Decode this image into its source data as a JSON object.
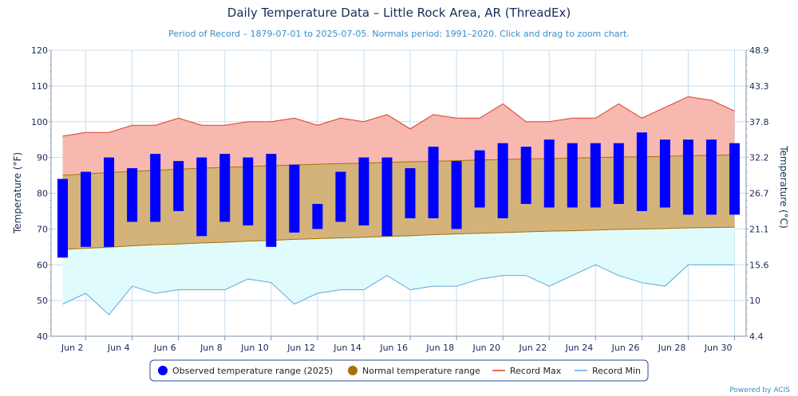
{
  "title": "Daily Temperature Data – Little Rock Area, AR (ThreadEx)",
  "subtitle": "Period of Record – 1879-07-01 to 2025-07-05. Normals period: 1991–2020. Click and drag to zoom chart.",
  "credits": "Powered by ACIS",
  "colors": {
    "observed": "#0000ff",
    "normal_fill": "#d4b37a",
    "normal_line": "#a8700a",
    "record_max_fill": "#f7b8b0",
    "record_max_line": "#e03a2a",
    "record_min_fill": "#e0fbfb",
    "record_min_line": "#5aa8e0",
    "grid": "#c7ddee",
    "text": "#1a2a5a"
  },
  "chart_data": {
    "type": "bar",
    "title": "Daily Temperature Data – Little Rock Area, AR (ThreadEx)",
    "xlabel": "",
    "ylabel": "Temperature (°F)",
    "ylabel_right": "Temperature (°C)",
    "ylim": [
      40,
      120
    ],
    "grid": true,
    "legend_placement": "bottom-center",
    "y_ticks_left": [
      "40",
      "50",
      "60",
      "70",
      "80",
      "90",
      "100",
      "110",
      "120"
    ],
    "y_ticks_right": [
      "4.4",
      "10",
      "15.6",
      "21.1",
      "26.7",
      "32.2",
      "37.8",
      "43.3",
      "48.9"
    ],
    "x_tick_labels": [
      "Jun 2",
      "Jun 4",
      "Jun 6",
      "Jun 8",
      "Jun 10",
      "Jun 12",
      "Jun 14",
      "Jun 16",
      "Jun 18",
      "Jun 20",
      "Jun 22",
      "Jun 24",
      "Jun 26",
      "Jun 28",
      "Jun 30"
    ],
    "x": [
      1,
      2,
      3,
      4,
      5,
      6,
      7,
      8,
      9,
      10,
      11,
      12,
      13,
      14,
      15,
      16,
      17,
      18,
      19,
      20,
      21,
      22,
      23,
      24,
      25,
      26,
      27,
      28,
      29,
      30
    ],
    "legend": [
      {
        "key": "observed",
        "label": "Observed temperature range (2025)",
        "marker": "circle"
      },
      {
        "key": "normal",
        "label": "Normal temperature range",
        "marker": "circle"
      },
      {
        "key": "record_max",
        "label": "Record Max",
        "marker": "line"
      },
      {
        "key": "record_min",
        "label": "Record Min",
        "marker": "line"
      }
    ],
    "series": [
      {
        "name": "Observed temperature range (2025)",
        "low": [
          62,
          65,
          65,
          72,
          72,
          75,
          68,
          72,
          71,
          65,
          69,
          70,
          72,
          71,
          68,
          73,
          73,
          70,
          76,
          73,
          77,
          76,
          76,
          76,
          77,
          75,
          76,
          74,
          74,
          74
        ],
        "high": [
          84,
          86,
          90,
          87,
          91,
          89,
          90,
          91,
          90,
          91,
          88,
          77,
          86,
          90,
          90,
          87,
          93,
          89,
          92,
          94,
          93,
          95,
          94,
          94,
          94,
          97,
          95,
          95,
          95,
          94
        ]
      },
      {
        "name": "Normal temperature range",
        "low": [
          64.3,
          64.6,
          64.9,
          65.3,
          65.6,
          65.8,
          66.1,
          66.3,
          66.6,
          66.8,
          67.1,
          67.3,
          67.5,
          67.7,
          67.9,
          68.1,
          68.4,
          68.6,
          68.8,
          69,
          69.2,
          69.4,
          69.5,
          69.7,
          69.9,
          70,
          70.1,
          70.3,
          70.4,
          70.5
        ],
        "high": [
          85,
          85.4,
          85.8,
          86.1,
          86.4,
          86.7,
          87,
          87.2,
          87.5,
          87.7,
          87.9,
          88.1,
          88.3,
          88.4,
          88.6,
          88.8,
          88.9,
          89.1,
          89.3,
          89.4,
          89.6,
          89.7,
          89.8,
          90,
          90.1,
          90.2,
          90.3,
          90.5,
          90.6,
          90.7
        ]
      },
      {
        "name": "Record Max",
        "values": [
          96,
          97,
          97,
          99,
          99,
          101,
          99,
          99,
          100,
          100,
          101,
          99,
          101,
          100,
          102,
          98,
          102,
          101,
          101,
          105,
          100,
          100,
          101,
          101,
          105,
          101,
          104,
          107,
          106,
          103
        ]
      },
      {
        "name": "Record Min",
        "values": [
          49,
          52,
          46,
          54,
          52,
          53,
          53,
          53,
          56,
          55,
          49,
          52,
          53,
          53,
          57,
          53,
          54,
          54,
          56,
          57,
          57,
          54,
          57,
          60,
          57,
          55,
          54,
          60,
          60,
          60
        ]
      }
    ]
  }
}
